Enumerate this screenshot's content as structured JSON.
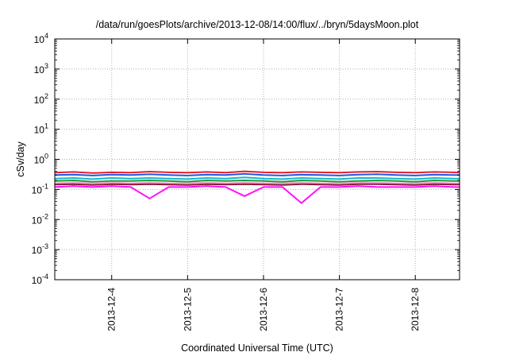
{
  "chart_data": {
    "type": "line",
    "title": "/data/run/goesPlots/archive/2013-12-08/14:00/flux/../bryn/5daysMoon.plot",
    "xlabel": "Coordinated Universal Time (UTC)",
    "ylabel": "cSv/day",
    "y_scale": "log",
    "ylim": [
      0.0001,
      10000
    ],
    "xlim": [
      "2013-12-03T06:00",
      "2013-12-08T14:00"
    ],
    "x_ticks": [
      "2013-12-4",
      "2013-12-5",
      "2013-12-6",
      "2013-12-7",
      "2013-12-8"
    ],
    "y_ticks": [
      {
        "base": "10",
        "exp": "-4"
      },
      {
        "base": "10",
        "exp": "-3"
      },
      {
        "base": "10",
        "exp": "-2"
      },
      {
        "base": "10",
        "exp": "-1"
      },
      {
        "base": "10",
        "exp": "0"
      },
      {
        "base": "10",
        "exp": "1"
      },
      {
        "base": "10",
        "exp": "2"
      },
      {
        "base": "10",
        "exp": "3"
      },
      {
        "base": "10",
        "exp": "4"
      }
    ],
    "grid": true,
    "x": [
      "2013-12-03T06:00",
      "2013-12-03T12:00",
      "2013-12-03T18:00",
      "2013-12-04T00:00",
      "2013-12-04T06:00",
      "2013-12-04T12:00",
      "2013-12-04T18:00",
      "2013-12-05T00:00",
      "2013-12-05T06:00",
      "2013-12-05T12:00",
      "2013-12-05T18:00",
      "2013-12-06T00:00",
      "2013-12-06T06:00",
      "2013-12-06T12:00",
      "2013-12-06T18:00",
      "2013-12-07T00:00",
      "2013-12-07T06:00",
      "2013-12-07T12:00",
      "2013-12-07T18:00",
      "2013-12-08T00:00",
      "2013-12-08T06:00",
      "2013-12-08T12:00",
      "2013-12-08T14:00"
    ],
    "series": [
      {
        "color": "#e8202a",
        "values": [
          0.36,
          0.38,
          0.35,
          0.37,
          0.36,
          0.39,
          0.37,
          0.36,
          0.38,
          0.36,
          0.4,
          0.37,
          0.36,
          0.38,
          0.37,
          0.36,
          0.38,
          0.39,
          0.37,
          0.36,
          0.38,
          0.37,
          0.36
        ]
      },
      {
        "color": "#2457e0",
        "values": [
          0.3,
          0.31,
          0.29,
          0.31,
          0.3,
          0.32,
          0.3,
          0.29,
          0.31,
          0.3,
          0.33,
          0.3,
          0.29,
          0.31,
          0.3,
          0.29,
          0.31,
          0.32,
          0.3,
          0.29,
          0.31,
          0.3,
          0.3
        ]
      },
      {
        "color": "#18b6c8",
        "values": [
          0.23,
          0.24,
          0.22,
          0.24,
          0.23,
          0.24,
          0.23,
          0.22,
          0.24,
          0.23,
          0.25,
          0.23,
          0.22,
          0.24,
          0.23,
          0.22,
          0.24,
          0.24,
          0.23,
          0.22,
          0.24,
          0.23,
          0.23
        ]
      },
      {
        "color": "#1a9e3a",
        "values": [
          0.19,
          0.2,
          0.18,
          0.19,
          0.19,
          0.2,
          0.19,
          0.18,
          0.2,
          0.19,
          0.2,
          0.19,
          0.18,
          0.2,
          0.19,
          0.18,
          0.19,
          0.2,
          0.19,
          0.18,
          0.2,
          0.19,
          0.19
        ]
      },
      {
        "color": "#f0a0c8",
        "values": [
          0.16,
          0.17,
          0.16,
          0.17,
          0.16,
          0.17,
          0.16,
          0.16,
          0.17,
          0.16,
          0.17,
          0.16,
          0.16,
          0.17,
          0.16,
          0.16,
          0.17,
          0.17,
          0.16,
          0.16,
          0.17,
          0.16,
          0.16
        ]
      },
      {
        "color": "#8b1a3a",
        "values": [
          0.145,
          0.15,
          0.14,
          0.15,
          0.145,
          0.15,
          0.145,
          0.14,
          0.15,
          0.145,
          0.15,
          0.145,
          0.14,
          0.15,
          0.145,
          0.14,
          0.15,
          0.15,
          0.145,
          0.14,
          0.15,
          0.145,
          0.145
        ]
      },
      {
        "color": "#ff10ff",
        "values": [
          0.12,
          0.13,
          0.12,
          0.13,
          0.12,
          0.05,
          0.12,
          0.12,
          0.13,
          0.12,
          0.06,
          0.12,
          0.12,
          0.035,
          0.12,
          0.12,
          0.13,
          0.12,
          0.12,
          0.12,
          0.13,
          0.12,
          0.12
        ]
      }
    ]
  }
}
